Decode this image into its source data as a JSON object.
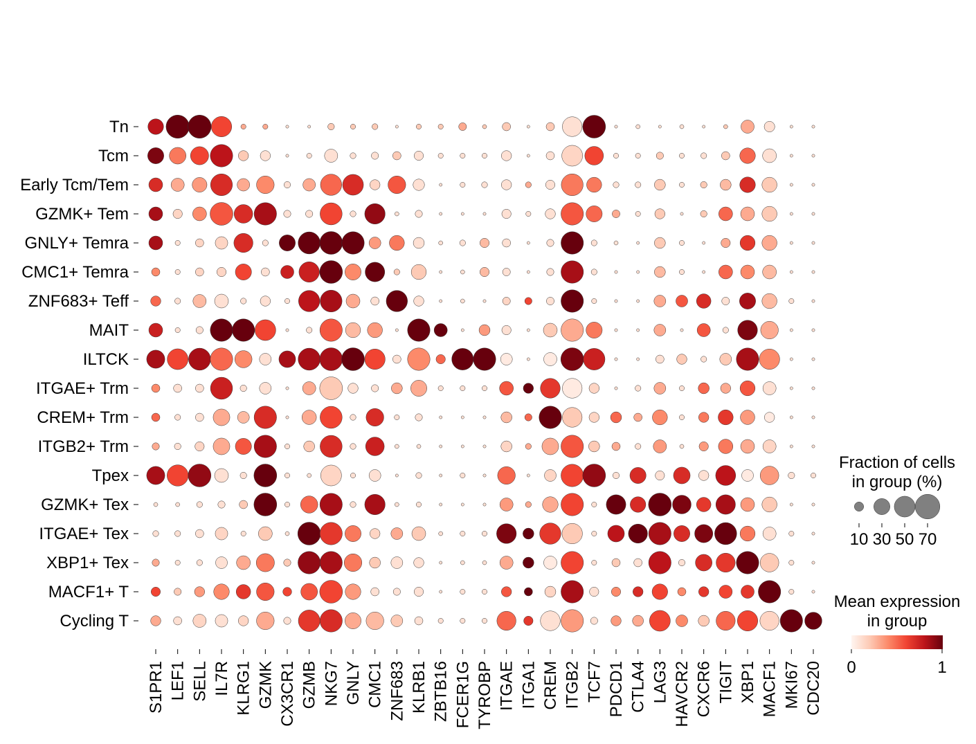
{
  "chart_data": {
    "type": "dotplot",
    "genes": [
      "S1PR1",
      "LEF1",
      "SELL",
      "IL7R",
      "KLRG1",
      "GZMK",
      "CX3CR1",
      "GZMB",
      "NKG7",
      "GNLY",
      "CMC1",
      "ZNF683",
      "KLRB1",
      "ZBTB16",
      "FCER1G",
      "TYROBP",
      "ITGAE",
      "ITGA1",
      "CREM",
      "ITGB2",
      "TCF7",
      "PDCD1",
      "CTLA4",
      "LAG3",
      "HAVCR2",
      "CXCR6",
      "TIGIT",
      "XBP1",
      "MACF1",
      "MKI67",
      "CDC20"
    ],
    "groups": [
      "Tn",
      "Tcm",
      "Early Tcm/Tem",
      "GZMK+ Tem",
      "GNLY+ Temra",
      "CMC1+ Temra",
      "ZNF683+ Teff",
      "MAIT",
      "ILTCK",
      "ITGAE+ Trm",
      "CREM+ Trm",
      "ITGB2+ Trm",
      "Tpex",
      "GZMK+ Tex",
      "ITGAE+ Tex",
      "XBP1+ Tex",
      "MACF1+ T",
      "Cycling T"
    ],
    "fraction_pct": [
      [
        28,
        62,
        62,
        48,
        3,
        3,
        1,
        1,
        5,
        3,
        4,
        1,
        3,
        3,
        7,
        2,
        8,
        1,
        8,
        45,
        60,
        1,
        2,
        1,
        2,
        1,
        2,
        20,
        13,
        1,
        1
      ],
      [
        30,
        32,
        38,
        58,
        12,
        12,
        1,
        3,
        20,
        4,
        6,
        8,
        10,
        3,
        3,
        3,
        12,
        1,
        8,
        50,
        40,
        3,
        3,
        6,
        3,
        4,
        8,
        28,
        22,
        1,
        1
      ],
      [
        22,
        20,
        25,
        55,
        18,
        36,
        5,
        18,
        52,
        50,
        12,
        36,
        15,
        1,
        3,
        4,
        12,
        4,
        10,
        55,
        26,
        4,
        4,
        14,
        3,
        5,
        14,
        28,
        26,
        1,
        1
      ],
      [
        22,
        10,
        22,
        60,
        40,
        58,
        6,
        6,
        56,
        4,
        48,
        2,
        6,
        1,
        1,
        1,
        10,
        3,
        12,
        58,
        30,
        7,
        3,
        12,
        1,
        5,
        22,
        22,
        26,
        1,
        1
      ],
      [
        22,
        3,
        8,
        18,
        42,
        4,
        30,
        56,
        60,
        58,
        16,
        26,
        14,
        2,
        4,
        10,
        8,
        1,
        6,
        58,
        4,
        2,
        1,
        14,
        3,
        1,
        10,
        26,
        26,
        1,
        1
      ],
      [
        8,
        3,
        8,
        10,
        30,
        8,
        20,
        48,
        60,
        30,
        44,
        4,
        26,
        1,
        2,
        10,
        7,
        1,
        6,
        58,
        4,
        1,
        1,
        14,
        3,
        1,
        22,
        22,
        22,
        1,
        1
      ],
      [
        12,
        4,
        20,
        22,
        4,
        12,
        3,
        52,
        55,
        22,
        8,
        52,
        12,
        1,
        2,
        1,
        7,
        6,
        7,
        58,
        3,
        1,
        1,
        16,
        16,
        24,
        7,
        30,
        26,
        3,
        1
      ],
      [
        22,
        3,
        6,
        58,
        58,
        50,
        1,
        4,
        58,
        26,
        26,
        1,
        58,
        20,
        1,
        14,
        10,
        1,
        22,
        58,
        30,
        1,
        1,
        16,
        1,
        20,
        4,
        45,
        36,
        1,
        1
      ],
      [
        38,
        50,
        56,
        58,
        34,
        16,
        32,
        56,
        60,
        60,
        48,
        8,
        58,
        10,
        54,
        58,
        16,
        1,
        20,
        60,
        54,
        1,
        1,
        8,
        12,
        4,
        16,
        58,
        48,
        1,
        1
      ],
      [
        8,
        8,
        8,
        56,
        5,
        16,
        1,
        20,
        60,
        12,
        6,
        14,
        30,
        3,
        3,
        3,
        22,
        12,
        45,
        45,
        12,
        1,
        4,
        16,
        3,
        14,
        12,
        26,
        20,
        1,
        1
      ],
      [
        8,
        4,
        8,
        32,
        16,
        58,
        1,
        24,
        56,
        4,
        36,
        3,
        6,
        1,
        1,
        1,
        14,
        6,
        58,
        45,
        12,
        14,
        8,
        26,
        3,
        12,
        26,
        24,
        12,
        1,
        1
      ],
      [
        6,
        5,
        10,
        32,
        30,
        58,
        3,
        14,
        56,
        4,
        40,
        2,
        2,
        1,
        1,
        1,
        14,
        4,
        32,
        58,
        14,
        8,
        4,
        20,
        2,
        10,
        24,
        22,
        20,
        1,
        1
      ],
      [
        38,
        52,
        60,
        22,
        5,
        60,
        3,
        2,
        50,
        3,
        16,
        1,
        4,
        1,
        3,
        1,
        36,
        1,
        16,
        58,
        60,
        5,
        30,
        10,
        32,
        12,
        46,
        16,
        40,
        5,
        3
      ],
      [
        2,
        2,
        4,
        6,
        8,
        60,
        3,
        34,
        58,
        4,
        48,
        2,
        3,
        1,
        1,
        1,
        20,
        4,
        28,
        58,
        3,
        44,
        28,
        60,
        40,
        24,
        44,
        22,
        26,
        1,
        1
      ],
      [
        4,
        4,
        8,
        18,
        3,
        22,
        2,
        60,
        58,
        30,
        12,
        16,
        22,
        2,
        3,
        3,
        45,
        14,
        52,
        48,
        3,
        32,
        42,
        58,
        30,
        38,
        56,
        26,
        20,
        3,
        1
      ],
      [
        6,
        3,
        4,
        16,
        22,
        38,
        6,
        58,
        58,
        36,
        14,
        16,
        12,
        1,
        2,
        2,
        20,
        14,
        20,
        58,
        3,
        8,
        8,
        58,
        5,
        32,
        42,
        58,
        40,
        3,
        1
      ],
      [
        10,
        6,
        12,
        28,
        24,
        36,
        9,
        32,
        60,
        28,
        8,
        6,
        10,
        1,
        3,
        3,
        12,
        8,
        14,
        58,
        10,
        10,
        12,
        28,
        8,
        12,
        20,
        20,
        58,
        3,
        1
      ],
      [
        12,
        8,
        20,
        18,
        12,
        36,
        6,
        54,
        58,
        30,
        36,
        16,
        8,
        3,
        3,
        3,
        42,
        10,
        45,
        58,
        6,
        12,
        14,
        50,
        16,
        14,
        42,
        48,
        42,
        58,
        34
      ]
    ],
    "mean_expression": [
      [
        0.8,
        1.0,
        1.0,
        0.6,
        0.3,
        0.3,
        0.1,
        0.1,
        0.2,
        0.2,
        0.2,
        0.1,
        0.2,
        0.2,
        0.3,
        0.2,
        0.2,
        0.1,
        0.2,
        0.1,
        1.0,
        0.1,
        0.1,
        0.1,
        0.1,
        0.1,
        0.2,
        0.3,
        0.1,
        0.1,
        0.1
      ],
      [
        0.95,
        0.45,
        0.6,
        0.8,
        0.2,
        0.1,
        0.1,
        0.1,
        0.1,
        0.1,
        0.1,
        0.2,
        0.1,
        0.1,
        0.1,
        0.1,
        0.1,
        0.1,
        0.1,
        0.15,
        0.6,
        0.1,
        0.1,
        0.2,
        0.1,
        0.1,
        0.2,
        0.5,
        0.1,
        0.1,
        0.1
      ],
      [
        0.7,
        0.3,
        0.35,
        0.7,
        0.3,
        0.4,
        0.1,
        0.3,
        0.5,
        0.7,
        0.15,
        0.55,
        0.1,
        0.1,
        0.1,
        0.1,
        0.1,
        0.3,
        0.1,
        0.45,
        0.45,
        0.1,
        0.1,
        0.2,
        0.1,
        0.2,
        0.25,
        0.7,
        0.2,
        0.1,
        0.1
      ],
      [
        0.85,
        0.15,
        0.4,
        0.55,
        0.7,
        0.85,
        0.1,
        0.1,
        0.6,
        0.1,
        0.9,
        0.1,
        0.1,
        0.1,
        0.1,
        0.1,
        0.1,
        0.1,
        0.1,
        0.55,
        0.5,
        0.3,
        0.1,
        0.2,
        0.1,
        0.2,
        0.5,
        0.3,
        0.2,
        0.1,
        0.1
      ],
      [
        0.85,
        0.1,
        0.15,
        0.15,
        0.7,
        0.1,
        1.0,
        1.0,
        1.0,
        1.0,
        0.35,
        0.45,
        0.1,
        0.1,
        0.1,
        0.25,
        0.1,
        0.1,
        0.1,
        1.0,
        0.1,
        0.1,
        0.1,
        0.2,
        0.1,
        0.1,
        0.3,
        0.65,
        0.3,
        0.1,
        0.1
      ],
      [
        0.4,
        0.1,
        0.15,
        0.15,
        0.6,
        0.1,
        0.75,
        0.75,
        1.0,
        0.4,
        1.0,
        0.2,
        0.2,
        0.1,
        0.1,
        0.25,
        0.1,
        0.1,
        0.1,
        0.85,
        0.1,
        0.1,
        0.1,
        0.25,
        0.1,
        0.1,
        0.5,
        0.4,
        0.25,
        0.1,
        0.1
      ],
      [
        0.5,
        0.1,
        0.25,
        0.1,
        0.1,
        0.1,
        0.1,
        0.8,
        0.85,
        0.3,
        0.1,
        1.0,
        0.1,
        0.1,
        0.1,
        0.1,
        0.15,
        0.6,
        0.1,
        1.0,
        0.1,
        0.1,
        0.1,
        0.3,
        0.55,
        0.7,
        0.1,
        0.85,
        0.25,
        0.1,
        0.1
      ],
      [
        0.75,
        0.1,
        0.1,
        1.0,
        1.0,
        0.6,
        0.1,
        0.1,
        0.55,
        0.25,
        0.35,
        0.1,
        1.0,
        1.0,
        0.1,
        0.35,
        0.1,
        0.1,
        0.2,
        0.3,
        0.45,
        0.1,
        0.1,
        0.3,
        0.1,
        0.55,
        0.1,
        0.95,
        0.3,
        0.1,
        0.1
      ],
      [
        0.85,
        0.6,
        0.85,
        0.5,
        0.4,
        0.1,
        0.85,
        0.85,
        0.85,
        1.0,
        0.6,
        0.1,
        0.4,
        0.5,
        1.0,
        1.0,
        0.05,
        0.1,
        0.05,
        0.95,
        0.75,
        0.1,
        0.1,
        0.1,
        0.2,
        0.1,
        0.2,
        0.85,
        0.4,
        0.1,
        0.1
      ],
      [
        0.4,
        0.1,
        0.1,
        0.75,
        0.1,
        0.1,
        0.1,
        0.3,
        0.2,
        0.1,
        0.1,
        0.3,
        0.3,
        0.1,
        0.1,
        0.1,
        0.55,
        1.0,
        0.65,
        0.05,
        0.15,
        0.1,
        0.1,
        0.3,
        0.1,
        0.5,
        0.3,
        0.55,
        0.1,
        0.1,
        0.1
      ],
      [
        0.5,
        0.1,
        0.1,
        0.3,
        0.25,
        0.7,
        0.1,
        0.3,
        0.6,
        0.1,
        0.7,
        0.1,
        0.1,
        0.1,
        0.1,
        0.1,
        0.25,
        0.5,
        1.0,
        0.2,
        0.15,
        0.5,
        0.3,
        0.4,
        0.1,
        0.45,
        0.65,
        0.35,
        0.05,
        0.1,
        0.1
      ],
      [
        0.3,
        0.1,
        0.15,
        0.3,
        0.55,
        0.85,
        0.1,
        0.2,
        0.7,
        0.1,
        0.75,
        0.1,
        0.1,
        0.1,
        0.1,
        0.1,
        0.15,
        0.3,
        0.3,
        0.55,
        0.2,
        0.3,
        0.1,
        0.35,
        0.1,
        0.35,
        0.45,
        0.3,
        0.15,
        0.1,
        0.1
      ],
      [
        0.85,
        0.6,
        0.9,
        0.1,
        0.1,
        1.0,
        0.1,
        0.1,
        0.15,
        0.1,
        0.1,
        0.1,
        0.1,
        0.1,
        0.1,
        0.1,
        0.5,
        0.1,
        0.15,
        0.6,
        0.9,
        0.1,
        0.7,
        0.1,
        0.7,
        0.1,
        0.8,
        0.05,
        0.35,
        0.1,
        0.1
      ],
      [
        0.1,
        0.1,
        0.1,
        0.1,
        0.2,
        1.0,
        0.1,
        0.5,
        0.85,
        0.1,
        0.85,
        0.1,
        0.1,
        0.1,
        0.1,
        0.1,
        0.35,
        0.3,
        0.3,
        0.6,
        0.1,
        1.0,
        0.7,
        1.0,
        0.95,
        0.65,
        0.85,
        0.35,
        0.2,
        0.1,
        0.1
      ],
      [
        0.1,
        0.1,
        0.1,
        0.15,
        0.1,
        0.2,
        0.1,
        1.0,
        0.65,
        0.45,
        0.15,
        0.3,
        0.2,
        0.1,
        0.1,
        0.1,
        0.95,
        1.0,
        0.65,
        0.2,
        0.1,
        0.8,
        1.0,
        0.85,
        0.7,
        0.95,
        1.0,
        0.45,
        0.1,
        0.1,
        0.1
      ],
      [
        0.3,
        0.1,
        0.1,
        0.1,
        0.3,
        0.45,
        0.2,
        0.9,
        0.85,
        0.45,
        0.2,
        0.1,
        0.1,
        0.1,
        0.1,
        0.1,
        0.3,
        1.0,
        0.05,
        0.6,
        0.1,
        0.2,
        0.1,
        0.8,
        0.1,
        0.7,
        0.65,
        1.0,
        0.2,
        0.1,
        0.1
      ],
      [
        0.6,
        0.2,
        0.35,
        0.4,
        0.65,
        0.55,
        0.6,
        0.55,
        0.6,
        0.35,
        0.1,
        0.1,
        0.1,
        0.1,
        0.1,
        0.1,
        0.55,
        1.0,
        0.15,
        0.85,
        0.1,
        0.4,
        0.7,
        0.6,
        0.4,
        0.65,
        0.6,
        0.65,
        1.0,
        0.1,
        0.1
      ],
      [
        0.3,
        0.1,
        0.15,
        0.1,
        0.15,
        0.3,
        0.1,
        0.65,
        0.7,
        0.3,
        0.25,
        0.2,
        0.1,
        0.1,
        0.1,
        0.1,
        0.5,
        0.65,
        0.1,
        0.35,
        0.1,
        0.35,
        0.3,
        0.6,
        0.4,
        0.2,
        0.5,
        0.6,
        0.15,
        1.0,
        1.0
      ]
    ],
    "size_legend": {
      "title_line1": "Fraction of cells",
      "title_line2": "in group (%)",
      "values": [
        10,
        30,
        50,
        70
      ],
      "labels": [
        "10",
        "30",
        "50",
        "70"
      ]
    },
    "color_legend": {
      "title_line1": "Mean expression",
      "title_line2": "in group",
      "min_label": "0",
      "max_label": "1",
      "colormap": "Reds",
      "stops": [
        "#fff5f0",
        "#fdcab5",
        "#fc8a6a",
        "#f14432",
        "#bc141a",
        "#67000d"
      ]
    }
  }
}
